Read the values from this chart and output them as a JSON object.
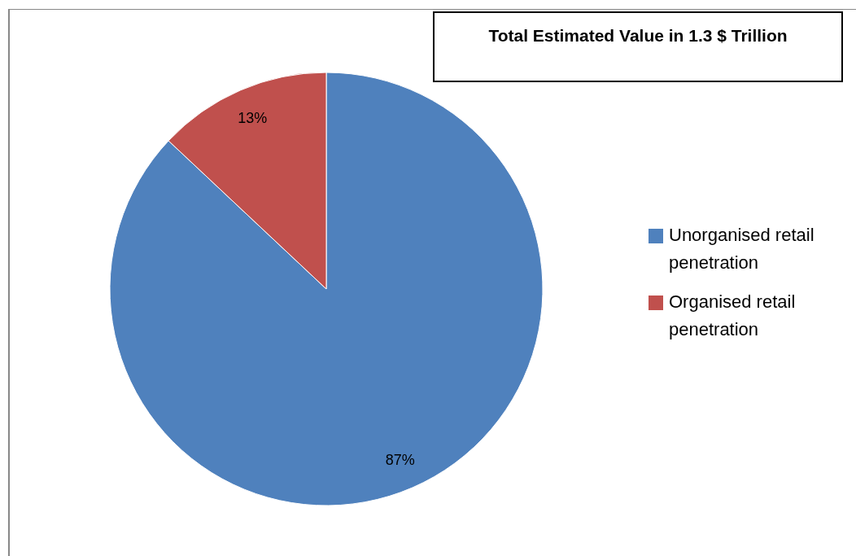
{
  "chart_data": {
    "type": "pie",
    "title": "Total Estimated Value in 1.3 $ Trillion",
    "categories": [
      "Unorganised retail penetration",
      "Organised retail penetration"
    ],
    "values": [
      87,
      13
    ],
    "colors": [
      "#4f81bd",
      "#c0504d"
    ],
    "value_labels": [
      "87%",
      "13%"
    ],
    "legend": "right"
  }
}
